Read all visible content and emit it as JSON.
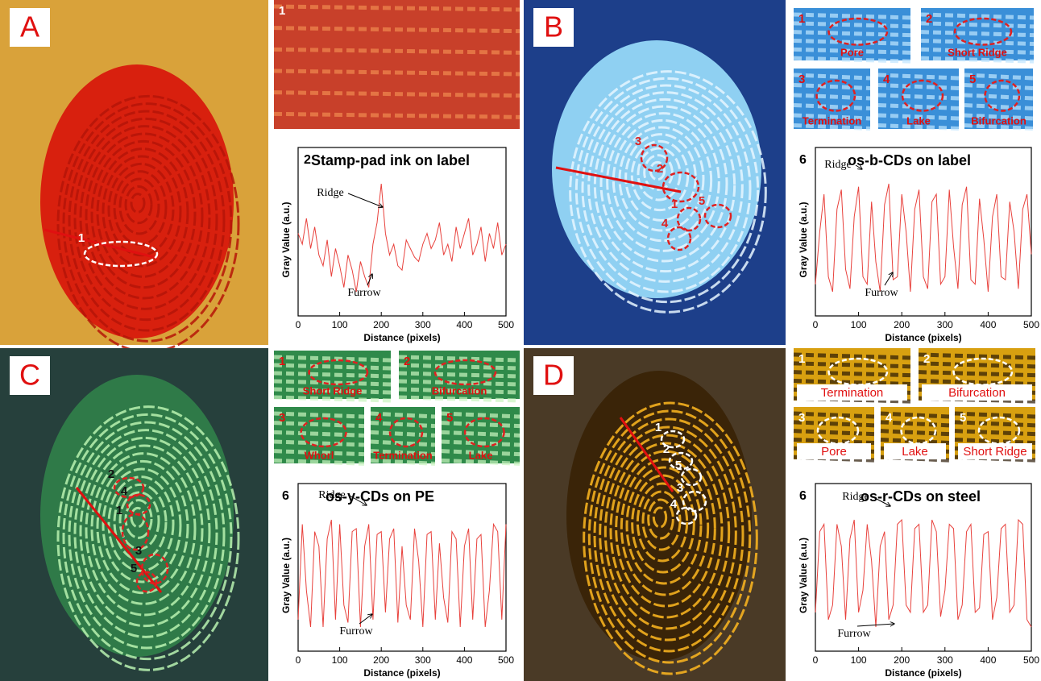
{
  "panels": [
    {
      "letter": "A",
      "markers": [
        "1"
      ],
      "sub_images": [
        {
          "number": "1"
        }
      ]
    },
    {
      "letter": "B",
      "markers": [
        "3",
        "2",
        "5",
        "4",
        "1"
      ],
      "sub_images": [
        {
          "number": "1",
          "label": "Pore"
        },
        {
          "number": "2",
          "label": "Short Ridge"
        },
        {
          "number": "3",
          "label": "Termination"
        },
        {
          "number": "4",
          "label": "Lake"
        },
        {
          "number": "5",
          "label": "Bifurcation"
        }
      ]
    },
    {
      "letter": "C",
      "markers": [
        "2",
        "4",
        "1",
        "3",
        "5"
      ],
      "sub_images": [
        {
          "number": "1",
          "label": "Short Ridge"
        },
        {
          "number": "2",
          "label": "Bifurcation"
        },
        {
          "number": "3",
          "label": "Whorl"
        },
        {
          "number": "4",
          "label": "Termination"
        },
        {
          "number": "5",
          "label": "Lake"
        }
      ]
    },
    {
      "letter": "D",
      "markers": [
        "1",
        "2",
        "5",
        "3",
        "4"
      ],
      "sub_images": [
        {
          "number": "1",
          "label": "Termination"
        },
        {
          "number": "2",
          "label": "Bifurcation"
        },
        {
          "number": "3",
          "label": "Pore"
        },
        {
          "number": "4",
          "label": "Lake"
        },
        {
          "number": "5",
          "label": "Short Ridge"
        }
      ]
    }
  ],
  "chart_data": [
    {
      "type": "line",
      "panel_number": "2",
      "title": "Stamp-pad ink on label",
      "x_label": "Distance (pixels)",
      "y_label": "Gray Value (a.u.)",
      "annotations": [
        "Ridge",
        "Furrow"
      ],
      "xlim": [
        0,
        500
      ],
      "xticks": [
        0,
        100,
        200,
        300,
        400,
        500
      ],
      "x": [
        0,
        10,
        20,
        30,
        40,
        50,
        60,
        70,
        80,
        90,
        100,
        110,
        120,
        130,
        140,
        150,
        160,
        170,
        180,
        190,
        200,
        210,
        220,
        230,
        240,
        250,
        260,
        270,
        280,
        290,
        300,
        310,
        320,
        330,
        340,
        350,
        360,
        370,
        380,
        390,
        400,
        410,
        420,
        430,
        440,
        450,
        460,
        470,
        480,
        490,
        500
      ],
      "series": [
        {
          "color": "#e8413c",
          "values": [
            55,
            50,
            62,
            48,
            58,
            45,
            40,
            52,
            35,
            48,
            40,
            30,
            45,
            38,
            28,
            42,
            35,
            30,
            50,
            60,
            78,
            55,
            45,
            50,
            40,
            38,
            52,
            48,
            44,
            42,
            50,
            55,
            48,
            52,
            60,
            45,
            50,
            42,
            58,
            48,
            55,
            62,
            45,
            50,
            58,
            42,
            55,
            48,
            60,
            45,
            50
          ]
        }
      ]
    },
    {
      "type": "line",
      "panel_number": "6",
      "title": "os-b-CDs on label",
      "x_label": "Distance (pixels)",
      "y_label": "Gray Value (a.u.)",
      "annotations": [
        "Ridge",
        "Furrow"
      ],
      "xlim": [
        0,
        500
      ],
      "xticks": [
        0,
        100,
        200,
        300,
        400,
        500
      ],
      "x": [
        0,
        10,
        20,
        30,
        40,
        50,
        60,
        70,
        80,
        90,
        100,
        110,
        120,
        130,
        140,
        150,
        160,
        170,
        180,
        190,
        200,
        210,
        220,
        230,
        240,
        250,
        260,
        270,
        280,
        290,
        300,
        310,
        320,
        330,
        340,
        350,
        360,
        370,
        380,
        390,
        400,
        410,
        420,
        430,
        440,
        450,
        460,
        470,
        480,
        490,
        500
      ],
      "series": [
        {
          "color": "#e8413c",
          "values": [
            25,
            60,
            85,
            30,
            20,
            75,
            88,
            35,
            22,
            70,
            90,
            30,
            25,
            80,
            40,
            20,
            78,
            92,
            28,
            30,
            85,
            60,
            20,
            75,
            88,
            30,
            22,
            80,
            85,
            25,
            30,
            88,
            50,
            22,
            78,
            90,
            28,
            25,
            82,
            55,
            20,
            70,
            85,
            30,
            28,
            80,
            60,
            22,
            75,
            85,
            45
          ]
        }
      ]
    },
    {
      "type": "line",
      "panel_number": "6",
      "title": "os-y-CDs on PE",
      "x_label": "Distance (pixels)",
      "y_label": "Gray Value (a.u.)",
      "annotations": [
        "Ridge",
        "Furrow"
      ],
      "xlim": [
        0,
        500
      ],
      "xticks": [
        0,
        100,
        200,
        300,
        400,
        500
      ],
      "x": [
        0,
        10,
        20,
        30,
        40,
        50,
        60,
        70,
        80,
        90,
        100,
        110,
        120,
        130,
        140,
        150,
        160,
        170,
        180,
        190,
        200,
        210,
        220,
        230,
        240,
        250,
        260,
        270,
        280,
        290,
        300,
        310,
        320,
        330,
        340,
        350,
        360,
        370,
        380,
        390,
        400,
        410,
        420,
        430,
        440,
        450,
        460,
        470,
        480,
        490,
        500
      ],
      "series": [
        {
          "color": "#e8413c",
          "values": [
            20,
            85,
            40,
            15,
            80,
            70,
            15,
            75,
            88,
            20,
            85,
            30,
            18,
            80,
            82,
            15,
            70,
            85,
            20,
            78,
            80,
            25,
            75,
            82,
            18,
            70,
            30,
            20,
            82,
            60,
            15,
            78,
            80,
            20,
            72,
            35,
            18,
            80,
            75,
            15,
            70,
            82,
            20,
            75,
            78,
            15,
            40,
            85,
            80,
            20,
            85
          ]
        }
      ]
    },
    {
      "type": "line",
      "panel_number": "6",
      "title": "os-r-CDs on steel",
      "x_label": "Distance (pixels)",
      "y_label": "Gray Value (a.u.)",
      "annotations": [
        "Ridge",
        "Furrow"
      ],
      "xlim": [
        0,
        500
      ],
      "xticks": [
        0,
        100,
        200,
        300,
        400,
        500
      ],
      "x": [
        0,
        10,
        20,
        30,
        40,
        50,
        60,
        70,
        80,
        90,
        100,
        110,
        120,
        130,
        140,
        150,
        160,
        170,
        180,
        190,
        200,
        210,
        220,
        230,
        240,
        250,
        260,
        270,
        280,
        290,
        300,
        310,
        320,
        330,
        340,
        350,
        360,
        370,
        380,
        390,
        400,
        410,
        420,
        430,
        440,
        450,
        460,
        470,
        480,
        490,
        500
      ],
      "series": [
        {
          "color": "#e8413c",
          "values": [
            25,
            80,
            85,
            20,
            30,
            85,
            70,
            20,
            75,
            88,
            25,
            40,
            85,
            60,
            15,
            70,
            80,
            20,
            30,
            85,
            88,
            30,
            25,
            82,
            85,
            25,
            30,
            88,
            80,
            22,
            40,
            85,
            82,
            20,
            30,
            80,
            85,
            25,
            28,
            78,
            80,
            20,
            35,
            82,
            85,
            25,
            30,
            88,
            85,
            20,
            15
          ]
        }
      ]
    }
  ]
}
